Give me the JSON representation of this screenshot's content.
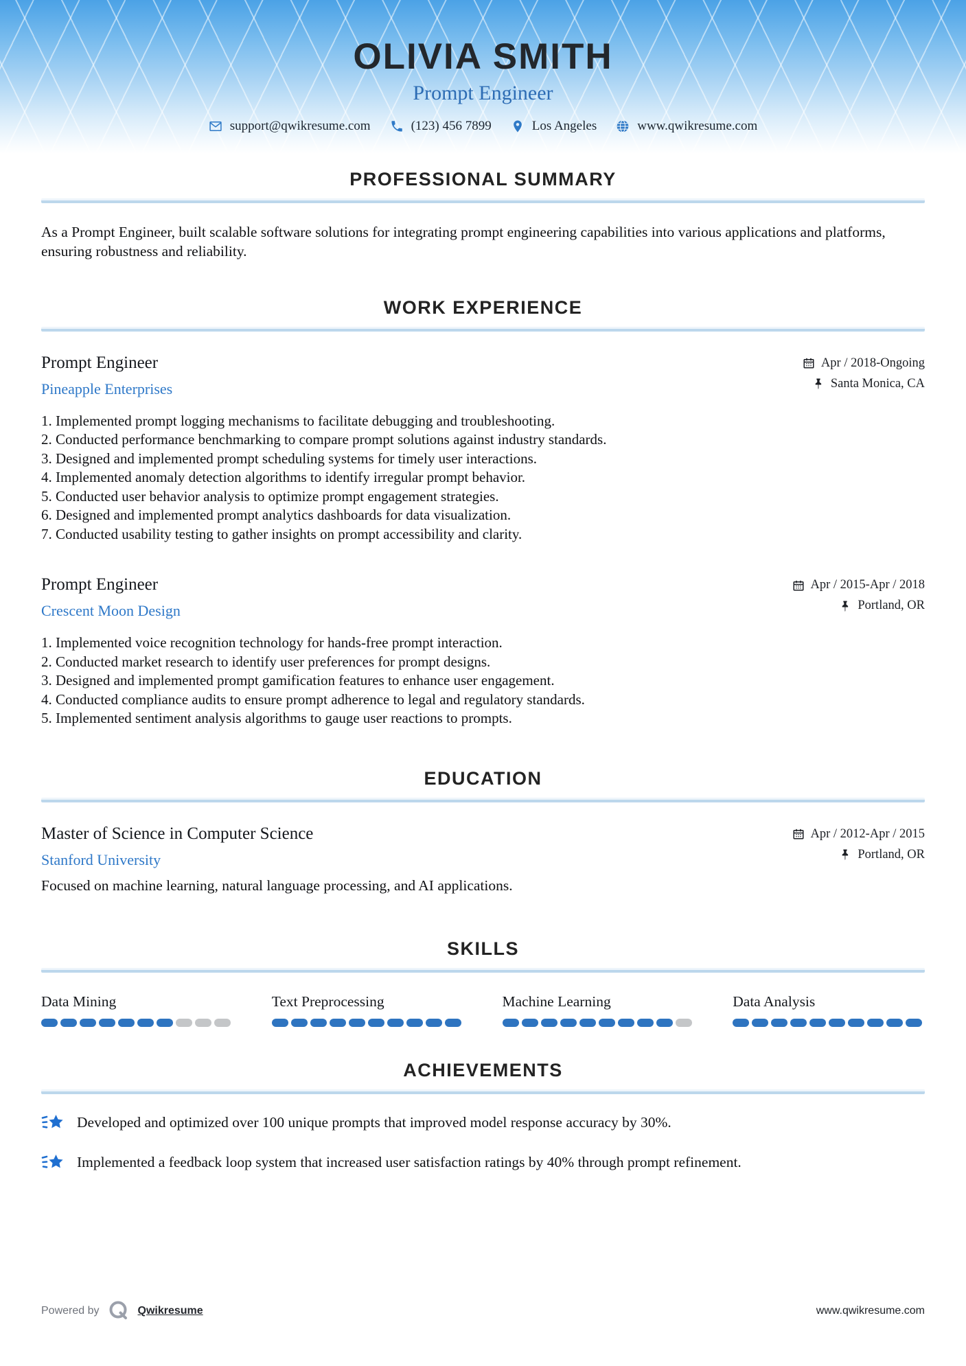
{
  "header": {
    "name": "OLIVIA SMITH",
    "title": "Prompt Engineer",
    "contact": {
      "email": "support@qwikresume.com",
      "phone": "(123) 456 7899",
      "location": "Los Angeles",
      "website": "www.qwikresume.com"
    }
  },
  "sections": {
    "summary": {
      "heading": "PROFESSIONAL SUMMARY",
      "text": "As a Prompt Engineer, built scalable software solutions for integrating prompt engineering capabilities into various applications and platforms, ensuring robustness and reliability."
    },
    "work": {
      "heading": "WORK EXPERIENCE",
      "jobs": [
        {
          "title": "Prompt Engineer",
          "company": "Pineapple Enterprises",
          "dates": "Apr / 2018-Ongoing",
          "location": "Santa Monica, CA",
          "items": [
            "Implemented prompt logging mechanisms to facilitate debugging and troubleshooting.",
            "Conducted performance benchmarking to compare prompt solutions against industry standards.",
            "Designed and implemented prompt scheduling systems for timely user interactions.",
            "Implemented anomaly detection algorithms to identify irregular prompt behavior.",
            "Conducted user behavior analysis to optimize prompt engagement strategies.",
            "Designed and implemented prompt analytics dashboards for data visualization.",
            "Conducted usability testing to gather insights on prompt accessibility and clarity."
          ]
        },
        {
          "title": "Prompt Engineer",
          "company": "Crescent Moon Design",
          "dates": "Apr / 2015-Apr / 2018",
          "location": "Portland, OR",
          "items": [
            "Implemented voice recognition technology for hands-free prompt interaction.",
            "Conducted market research to identify user preferences for prompt designs.",
            "Designed and implemented prompt gamification features to enhance user engagement.",
            "Conducted compliance audits to ensure prompt adherence to legal and regulatory standards.",
            "Implemented sentiment analysis algorithms to gauge user reactions to prompts."
          ]
        }
      ]
    },
    "education": {
      "heading": "EDUCATION",
      "degree": "Master of Science in Computer Science",
      "school": "Stanford University",
      "dates": "Apr / 2012-Apr / 2015",
      "location": "Portland, OR",
      "description": "Focused on machine learning, natural language processing, and AI applications."
    },
    "skills": {
      "heading": "SKILLS",
      "max": 10,
      "items": [
        {
          "label": "Data Mining",
          "level": 7
        },
        {
          "label": "Text Preprocessing",
          "level": 10
        },
        {
          "label": "Machine Learning",
          "level": 9
        },
        {
          "label": "Data Analysis",
          "level": 10
        }
      ]
    },
    "achievements": {
      "heading": "ACHIEVEMENTS",
      "items": [
        "Developed and optimized over 100 unique prompts that improved model response accuracy by 30%.",
        "Implemented a feedback loop system that increased user satisfaction ratings by 40% through prompt refinement."
      ]
    }
  },
  "footer": {
    "powered_by": "Powered by",
    "brand": "Qwikresume",
    "website": "www.qwikresume.com"
  },
  "icons": {
    "email": "envelope-icon",
    "phone": "phone-icon",
    "location": "map-pin-icon",
    "website": "globe-icon",
    "dates": "calendar-icon",
    "job_location": "pushpin-icon",
    "achievement": "shooting-star-icon",
    "brand": "qwikresume-q-logo"
  },
  "colors": {
    "accent_blue": "#2e78c8",
    "header_top": "#4ba2e6",
    "skill_fill": "#2e74c0",
    "skill_empty": "#c4c6c8",
    "divider_blue": "#bcd7ec",
    "star_blue": "#1f6fd0",
    "text_dark": "#14171c"
  }
}
